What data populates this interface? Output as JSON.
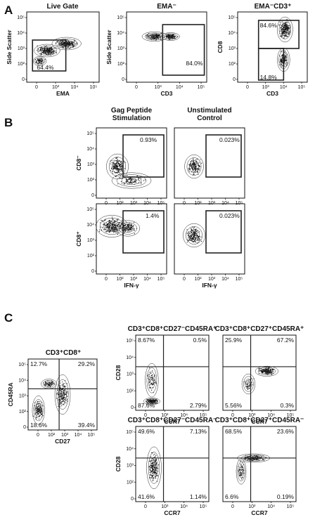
{
  "figure": {
    "panel_letters": [
      "A",
      "B",
      "C"
    ]
  },
  "chart_data": [
    {
      "type": "scatter",
      "panel": "A",
      "title": "Live Gate",
      "xlabel": "EMA",
      "ylabel": "Side Scatter",
      "x_ticks": [
        "0",
        "10³",
        "10⁴",
        "10⁵"
      ],
      "y_ticks": [
        "0",
        "10²",
        "10³",
        "10⁴",
        "10⁵"
      ],
      "gates": [
        {
          "label": "64.4%"
        }
      ]
    },
    {
      "type": "scatter",
      "panel": "A",
      "title": "EMA⁻",
      "xlabel": "CD3",
      "ylabel": "Side Scatter",
      "x_ticks": [
        "0",
        "10³",
        "10⁴",
        "10⁵"
      ],
      "y_ticks": [
        "0",
        "10²",
        "10³",
        "10⁴",
        "10⁵"
      ],
      "gates": [
        {
          "label": "84.0%"
        }
      ]
    },
    {
      "type": "scatter",
      "panel": "A",
      "title": "EMA⁻CD3⁺",
      "xlabel": "CD3",
      "ylabel": "CD8",
      "x_ticks": [
        "0",
        "10³",
        "10⁴",
        "10⁵"
      ],
      "y_ticks": [
        "0",
        "10²",
        "10³",
        "10⁴",
        "10⁵"
      ],
      "gates": [
        {
          "label": "84.6%"
        },
        {
          "label": "14.8%"
        }
      ]
    },
    {
      "type": "scatter",
      "panel": "B",
      "title": "Gag Peptide Stimulation",
      "xlabel": "",
      "ylabel": "CD8⁻",
      "x_ticks": [
        "0",
        "10²",
        "10³",
        "10⁴",
        "10⁵"
      ],
      "y_ticks": [
        "0",
        "10²",
        "10³",
        "10⁴",
        "10⁵"
      ],
      "gates": [
        {
          "label": "0.93%"
        }
      ]
    },
    {
      "type": "scatter",
      "panel": "B",
      "title": "Unstimulated Control",
      "xlabel": "",
      "ylabel": "",
      "x_ticks": [
        "0",
        "10²",
        "10³",
        "10⁴",
        "10⁵"
      ],
      "y_ticks": [],
      "gates": [
        {
          "label": "0.023%"
        }
      ]
    },
    {
      "type": "scatter",
      "panel": "B",
      "title": "",
      "xlabel": "IFN-γ",
      "ylabel": "CD8⁺",
      "x_ticks": [
        "0",
        "10²",
        "10³",
        "10⁴",
        "10⁵"
      ],
      "y_ticks": [
        "0",
        "10²",
        "10³",
        "10⁴",
        "10⁵"
      ],
      "gates": [
        {
          "label": "1.4%"
        }
      ]
    },
    {
      "type": "scatter",
      "panel": "B",
      "title": "",
      "xlabel": "IFN-γ",
      "ylabel": "",
      "x_ticks": [
        "0",
        "10²",
        "10³",
        "10⁴",
        "10⁵"
      ],
      "y_ticks": [],
      "gates": [
        {
          "label": "0.023%"
        }
      ]
    },
    {
      "type": "scatter",
      "panel": "C",
      "title": "CD3⁺CD8⁺",
      "xlabel": "CD27",
      "ylabel": "CD45RA",
      "x_ticks": [
        "0",
        "10²",
        "10³",
        "10⁴",
        "10⁵"
      ],
      "y_ticks": [
        "0",
        "10²",
        "10³",
        "10⁴",
        "10⁵"
      ],
      "quadrants": {
        "upper_left": "12.7%",
        "upper_right": "29.2%",
        "lower_left": "18.6%",
        "lower_right": "39.4%"
      }
    },
    {
      "type": "scatter",
      "panel": "C",
      "title": "CD3⁺CD8⁺CD27⁻CD45RA⁺",
      "xlabel": "CCR7",
      "ylabel": "CD28",
      "x_ticks": [
        "0",
        "10³",
        "10⁴",
        "10⁵"
      ],
      "y_ticks": [
        "0",
        "10²",
        "10³",
        "10⁴",
        "10⁵"
      ],
      "quadrants": {
        "upper_left": "8.67%",
        "upper_right": "0.5%",
        "lower_left": "87.6%",
        "lower_right": "2.79%"
      }
    },
    {
      "type": "scatter",
      "panel": "C",
      "title": "CD3⁺CD8⁺CD27⁺CD45RA⁺",
      "xlabel": "CCR7",
      "ylabel": "",
      "x_ticks": [
        "0",
        "10³",
        "10⁴",
        "10⁵"
      ],
      "y_ticks": [],
      "quadrants": {
        "upper_left": "25.9%",
        "upper_right": "67.2%",
        "lower_left": "5.56%",
        "lower_right": "0.3%"
      }
    },
    {
      "type": "scatter",
      "panel": "C",
      "title": "CD3⁺CD8⁺CD27⁻CD45RA⁻",
      "xlabel": "CCR7",
      "ylabel": "CD28",
      "x_ticks": [
        "0",
        "10³",
        "10⁴",
        "10⁵"
      ],
      "y_ticks": [
        "0",
        "10²",
        "10³",
        "10⁴",
        "10⁵"
      ],
      "quadrants": {
        "upper_left": "49.6%",
        "upper_right": "7.13%",
        "lower_left": "41.6%",
        "lower_right": "1.14%"
      }
    },
    {
      "type": "scatter",
      "panel": "C",
      "title": "CD3⁺CD8⁺CD27⁺CD45RA⁻",
      "xlabel": "CCR7",
      "ylabel": "",
      "x_ticks": [
        "0",
        "10³",
        "10⁴",
        "10⁵"
      ],
      "y_ticks": [],
      "quadrants": {
        "upper_left": "68.5%",
        "upper_right": "23.6%",
        "lower_left": "6.6%",
        "lower_right": "0.19%"
      }
    }
  ]
}
